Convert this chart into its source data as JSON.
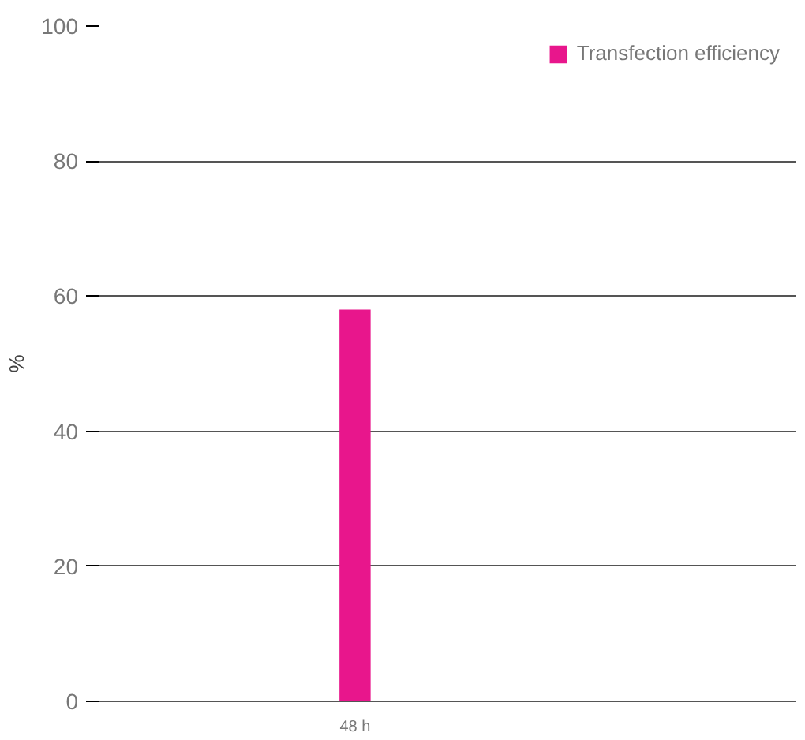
{
  "chart_data": {
    "type": "bar",
    "ylabel": "%",
    "categories": [
      "48 h"
    ],
    "series": [
      {
        "name": "Transfection efficiency",
        "color": "#e8168c",
        "values": [
          58
        ]
      }
    ],
    "ylim": [
      0,
      100
    ],
    "yticks": [
      0,
      20,
      40,
      60,
      80,
      100
    ],
    "grid": "y",
    "legend": "top right"
  }
}
